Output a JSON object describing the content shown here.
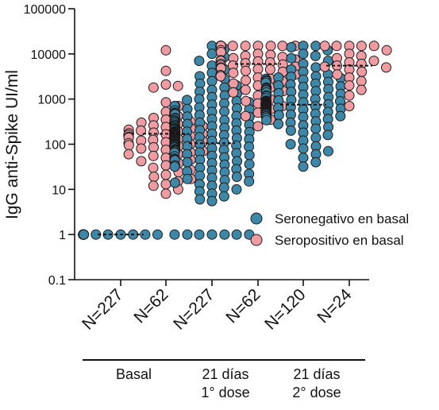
{
  "chart_data": {
    "type": "scatter",
    "ylabel": "IgG anti-Spike UI/ml",
    "yscale": "log",
    "ylim": [
      0.1,
      100000
    ],
    "yticks": [
      {
        "value": 0.1,
        "label": "0.1"
      },
      {
        "value": 1,
        "label": "1"
      },
      {
        "value": 10,
        "label": "10"
      },
      {
        "value": 100,
        "label": "100"
      },
      {
        "value": 1000,
        "label": "1000"
      },
      {
        "value": 10000,
        "label": "10000"
      },
      {
        "value": 100000,
        "label": "100000"
      }
    ],
    "categories": [
      "N=227",
      "N=62",
      "N=227",
      "N=62",
      "N=120",
      "N=24"
    ],
    "groups": [
      {
        "label_lines": [
          "Basal"
        ],
        "categories": [
          0,
          1
        ]
      },
      {
        "label_lines": [
          "21 días",
          "1° dose"
        ],
        "categories": [
          2,
          3
        ]
      },
      {
        "label_lines": [
          "21 días",
          "2° dose"
        ],
        "categories": [
          4,
          5
        ]
      }
    ],
    "legend_position": "right",
    "series": [
      {
        "name": "Seronegativo en basal",
        "color": "#3d87a8",
        "categories": [
          0,
          2,
          4
        ]
      },
      {
        "name": "Seropositivo en basal",
        "color": "#f09aa2",
        "categories": [
          1,
          3,
          5
        ]
      }
    ],
    "medians": [
      1,
      170,
      105,
      6000,
      750,
      5500
    ],
    "points": [
      {
        "category": 0,
        "series": 0,
        "n": 227,
        "values": [
          1,
          1,
          1,
          1,
          1,
          1,
          1,
          1,
          1,
          1,
          1,
          1,
          1,
          1,
          1,
          1,
          1,
          1,
          1,
          1,
          1,
          1,
          1,
          1,
          1
        ]
      },
      {
        "category": 1,
        "series": 1,
        "n": 62,
        "values": [
          12000,
          4200,
          2100,
          1950,
          1800,
          850,
          700,
          520,
          420,
          350,
          300,
          280,
          260,
          240,
          220,
          210,
          200,
          190,
          180,
          175,
          170,
          165,
          160,
          150,
          145,
          140,
          130,
          125,
          120,
          115,
          110,
          105,
          100,
          95,
          90,
          85,
          80,
          75,
          70,
          65,
          60,
          55,
          50,
          45,
          42,
          38,
          34,
          30,
          27,
          24,
          21,
          19,
          17,
          15,
          13,
          12,
          10,
          8,
          250,
          320,
          380,
          60
        ]
      },
      {
        "category": 2,
        "series": 0,
        "n": 227,
        "values": [
          15000,
          13000,
          10000,
          8500,
          7000,
          5500,
          4500,
          3800,
          3200,
          2800,
          2500,
          2200,
          2000,
          1800,
          1600,
          1450,
          1300,
          1200,
          1100,
          1000,
          950,
          900,
          850,
          800,
          750,
          700,
          650,
          620,
          590,
          560,
          530,
          500,
          480,
          460,
          440,
          420,
          400,
          380,
          360,
          340,
          320,
          300,
          290,
          280,
          270,
          260,
          250,
          240,
          230,
          220,
          215,
          210,
          205,
          200,
          195,
          190,
          185,
          180,
          175,
          170,
          165,
          160,
          155,
          150,
          145,
          140,
          136,
          132,
          128,
          124,
          120,
          117,
          114,
          111,
          108,
          105,
          102,
          99,
          96,
          93,
          90,
          87,
          84,
          81,
          78,
          75,
          72,
          69,
          66,
          63,
          60,
          57,
          54,
          51,
          48,
          46,
          44,
          42,
          40,
          38,
          36,
          34,
          32,
          30,
          28,
          26,
          24,
          22,
          20,
          19,
          18,
          17,
          16,
          15,
          14,
          13,
          12,
          11,
          10,
          9,
          8,
          7,
          6,
          5.5,
          110,
          130,
          150,
          170,
          190,
          210,
          95,
          85,
          75,
          65,
          55,
          45,
          35,
          25,
          115,
          125,
          135,
          145,
          155,
          165,
          175,
          185,
          88,
          92,
          98,
          104,
          112,
          118,
          126,
          134,
          142,
          148,
          158,
          168,
          178,
          196,
          212,
          225,
          245,
          265,
          285,
          310,
          340,
          370,
          410,
          460,
          520,
          600,
          700,
          1,
          1,
          1,
          1,
          1,
          1,
          1
        ]
      },
      {
        "category": 3,
        "series": 1,
        "n": 62,
        "values": [
          15000,
          15000,
          15000,
          15000,
          15000,
          15000,
          15000,
          15000,
          15000,
          15000,
          15000,
          15000,
          15000,
          15000,
          12000,
          11000,
          10000,
          9500,
          9000,
          8500,
          8000,
          7500,
          7000,
          6500,
          6200,
          6000,
          5800,
          5500,
          5200,
          5000,
          4800,
          4500,
          4200,
          4000,
          3800,
          3500,
          3200,
          3000,
          2800,
          2500,
          2200,
          2000,
          1800,
          1600,
          1400,
          1200,
          1000,
          900,
          800,
          700,
          600,
          500,
          420,
          350,
          250,
          6800,
          7200,
          5600,
          4600,
          3400,
          2600,
          1500
        ]
      },
      {
        "category": 4,
        "series": 0,
        "n": 120,
        "values": [
          15000,
          15000,
          14000,
          12000,
          10000,
          9000,
          8000,
          7000,
          6000,
          5000,
          4500,
          4000,
          3500,
          3200,
          3000,
          2800,
          2600,
          2400,
          2200,
          2000,
          1900,
          1800,
          1700,
          1600,
          1500,
          1400,
          1300,
          1200,
          1150,
          1100,
          1050,
          1000,
          960,
          920,
          880,
          840,
          800,
          780,
          760,
          740,
          720,
          700,
          680,
          660,
          640,
          620,
          600,
          580,
          560,
          540,
          520,
          500,
          480,
          460,
          440,
          420,
          400,
          380,
          360,
          340,
          320,
          300,
          280,
          260,
          240,
          220,
          200,
          180,
          160,
          140,
          120,
          100,
          90,
          80,
          70,
          60,
          50,
          40,
          32,
          750,
          770,
          790,
          810,
          830,
          850,
          870,
          890,
          910,
          930,
          650,
          670,
          690,
          710,
          730,
          610,
          630,
          590,
          570,
          550,
          530,
          510,
          490,
          470,
          450,
          430,
          410,
          1250,
          1350,
          1450,
          1550,
          1650,
          1750,
          1850,
          2100,
          2300,
          2500,
          2700,
          2900,
          3100
        ]
      },
      {
        "category": 5,
        "series": 1,
        "n": 24,
        "values": [
          15000,
          15000,
          15000,
          15000,
          15000,
          12000,
          10000,
          9000,
          8000,
          7000,
          6500,
          6000,
          5500,
          5200,
          5000,
          4500,
          4000,
          3500,
          3000,
          2500,
          2000,
          1600,
          1200,
          700
        ]
      }
    ]
  }
}
